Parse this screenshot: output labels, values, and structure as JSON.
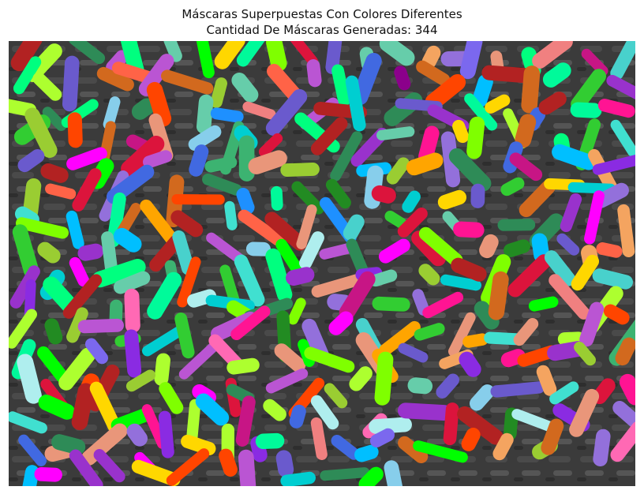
{
  "figure": {
    "title_line1": "Máscaras Superpuestas Con Colores Diferentes",
    "title_line2": "Cantidad De Máscaras Generadas: 344"
  },
  "image": {
    "subject": "bacteria-segmentation-overlay",
    "mask_count": 344,
    "background_color": "#3a3a3a",
    "mask_colors": [
      "#7fff00",
      "#ff1493",
      "#00ced1",
      "#9932cc",
      "#ffd700",
      "#ff6347",
      "#1e90ff",
      "#32cd32",
      "#ff69b4",
      "#8a2be2",
      "#00fa9a",
      "#dc143c",
      "#40e0d0",
      "#adff2f",
      "#ba55d3",
      "#f4a460",
      "#4169e1",
      "#00ff7f",
      "#ff4500",
      "#9370db",
      "#66cdaa",
      "#c71585",
      "#87ceeb",
      "#228b22",
      "#ff00ff",
      "#00bfff",
      "#b22222",
      "#7b68ee",
      "#3cb371",
      "#ffa500",
      "#afeeee",
      "#2e8b57",
      "#e9967a",
      "#6a5acd",
      "#00ff00",
      "#d2691e",
      "#48d1cc",
      "#8b008b",
      "#9acd32",
      "#f08080"
    ]
  }
}
